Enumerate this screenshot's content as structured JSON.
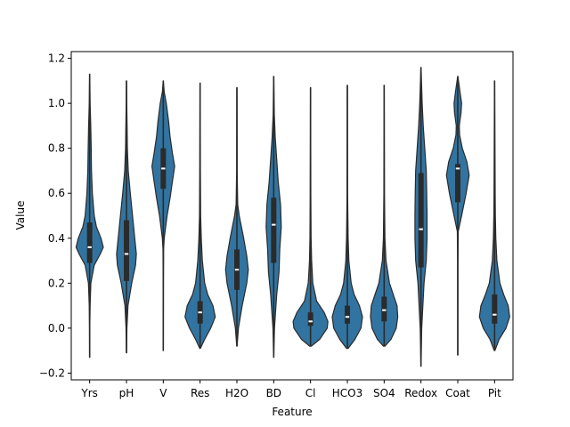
{
  "chart_data": {
    "type": "violin",
    "xlabel": "Feature",
    "ylabel": "Value",
    "ylim": [
      -0.23,
      1.23
    ],
    "yticks": [
      -0.2,
      0.0,
      0.2,
      0.4,
      0.6,
      0.8,
      1.0,
      1.2
    ],
    "ytick_labels": [
      "−0.2",
      "0.0",
      "0.2",
      "0.4",
      "0.6",
      "0.8",
      "1.0",
      "1.2"
    ],
    "grid": false,
    "colors": {
      "violin_fill": "#3274a1",
      "violin_edge": "#2a2a2a",
      "box": "#2b2b2b",
      "median": "#ffffff"
    },
    "categories": [
      "Yrs",
      "pH",
      "V",
      "Res",
      "H2O",
      "BD",
      "Cl",
      "HCO3",
      "SO4",
      "Redox",
      "Coat",
      "Pit"
    ],
    "violins": [
      {
        "name": "Yrs",
        "min": -0.13,
        "max": 1.13,
        "q1": 0.29,
        "median": 0.36,
        "q3": 0.47,
        "profile": [
          [
            -0.13,
            0.005
          ],
          [
            0.0,
            0.01
          ],
          [
            0.1,
            0.03
          ],
          [
            0.2,
            0.08
          ],
          [
            0.28,
            0.3
          ],
          [
            0.33,
            0.7
          ],
          [
            0.36,
            0.9
          ],
          [
            0.4,
            0.75
          ],
          [
            0.45,
            0.45
          ],
          [
            0.5,
            0.3
          ],
          [
            0.6,
            0.18
          ],
          [
            0.7,
            0.12
          ],
          [
            0.8,
            0.1
          ],
          [
            0.9,
            0.07
          ],
          [
            1.0,
            0.03
          ],
          [
            1.13,
            0.005
          ]
        ]
      },
      {
        "name": "pH",
        "min": -0.11,
        "max": 1.1,
        "q1": 0.21,
        "median": 0.33,
        "q3": 0.48,
        "profile": [
          [
            -0.11,
            0.005
          ],
          [
            0.0,
            0.03
          ],
          [
            0.1,
            0.1
          ],
          [
            0.2,
            0.35
          ],
          [
            0.28,
            0.6
          ],
          [
            0.33,
            0.65
          ],
          [
            0.4,
            0.55
          ],
          [
            0.5,
            0.4
          ],
          [
            0.6,
            0.25
          ],
          [
            0.7,
            0.12
          ],
          [
            0.8,
            0.06
          ],
          [
            0.9,
            0.04
          ],
          [
            1.0,
            0.02
          ],
          [
            1.1,
            0.005
          ]
        ]
      },
      {
        "name": "V",
        "min": -0.1,
        "max": 1.1,
        "q1": 0.62,
        "median": 0.71,
        "q3": 0.8,
        "profile": [
          [
            -0.1,
            0.005
          ],
          [
            0.2,
            0.01
          ],
          [
            0.35,
            0.02
          ],
          [
            0.4,
            0.06
          ],
          [
            0.5,
            0.25
          ],
          [
            0.58,
            0.45
          ],
          [
            0.65,
            0.6
          ],
          [
            0.72,
            0.75
          ],
          [
            0.78,
            0.6
          ],
          [
            0.85,
            0.45
          ],
          [
            0.92,
            0.35
          ],
          [
            1.0,
            0.2
          ],
          [
            1.05,
            0.06
          ],
          [
            1.1,
            0.005
          ]
        ]
      },
      {
        "name": "Res",
        "min": -0.09,
        "max": 1.09,
        "q1": 0.02,
        "median": 0.07,
        "q3": 0.12,
        "profile": [
          [
            -0.09,
            0.02
          ],
          [
            -0.05,
            0.3
          ],
          [
            0.0,
            0.7
          ],
          [
            0.05,
            1.0
          ],
          [
            0.1,
            0.85
          ],
          [
            0.15,
            0.5
          ],
          [
            0.2,
            0.3
          ],
          [
            0.3,
            0.15
          ],
          [
            0.4,
            0.08
          ],
          [
            0.5,
            0.04
          ],
          [
            0.7,
            0.02
          ],
          [
            1.09,
            0.005
          ]
        ]
      },
      {
        "name": "H2O",
        "min": -0.08,
        "max": 1.07,
        "q1": 0.17,
        "median": 0.26,
        "q3": 0.35,
        "profile": [
          [
            -0.08,
            0.01
          ],
          [
            0.0,
            0.1
          ],
          [
            0.1,
            0.35
          ],
          [
            0.2,
            0.65
          ],
          [
            0.26,
            0.75
          ],
          [
            0.32,
            0.65
          ],
          [
            0.4,
            0.45
          ],
          [
            0.5,
            0.15
          ],
          [
            0.55,
            0.05
          ],
          [
            0.7,
            0.02
          ],
          [
            1.07,
            0.005
          ]
        ]
      },
      {
        "name": "BD",
        "min": -0.13,
        "max": 1.12,
        "q1": 0.29,
        "median": 0.46,
        "q3": 0.58,
        "profile": [
          [
            -0.13,
            0.005
          ],
          [
            0.0,
            0.05
          ],
          [
            0.15,
            0.2
          ],
          [
            0.25,
            0.35
          ],
          [
            0.35,
            0.4
          ],
          [
            0.45,
            0.5
          ],
          [
            0.55,
            0.45
          ],
          [
            0.65,
            0.3
          ],
          [
            0.75,
            0.2
          ],
          [
            0.85,
            0.1
          ],
          [
            0.95,
            0.04
          ],
          [
            1.12,
            0.005
          ]
        ]
      },
      {
        "name": "Cl",
        "min": -0.08,
        "max": 1.07,
        "q1": 0.01,
        "median": 0.03,
        "q3": 0.07,
        "profile": [
          [
            -0.08,
            0.05
          ],
          [
            -0.05,
            0.6
          ],
          [
            0.0,
            1.1
          ],
          [
            0.03,
            1.15
          ],
          [
            0.07,
            0.9
          ],
          [
            0.12,
            0.4
          ],
          [
            0.2,
            0.15
          ],
          [
            0.3,
            0.07
          ],
          [
            0.4,
            0.04
          ],
          [
            0.6,
            0.02
          ],
          [
            1.07,
            0.005
          ]
        ]
      },
      {
        "name": "HCO3",
        "min": -0.09,
        "max": 1.08,
        "q1": 0.02,
        "median": 0.05,
        "q3": 0.1,
        "profile": [
          [
            -0.09,
            0.05
          ],
          [
            -0.05,
            0.5
          ],
          [
            0.0,
            0.9
          ],
          [
            0.05,
            1.0
          ],
          [
            0.1,
            0.8
          ],
          [
            0.15,
            0.45
          ],
          [
            0.2,
            0.25
          ],
          [
            0.3,
            0.1
          ],
          [
            0.4,
            0.05
          ],
          [
            0.6,
            0.02
          ],
          [
            1.08,
            0.005
          ]
        ]
      },
      {
        "name": "SO4",
        "min": -0.08,
        "max": 1.08,
        "q1": 0.03,
        "median": 0.08,
        "q3": 0.14,
        "profile": [
          [
            -0.08,
            0.05
          ],
          [
            -0.05,
            0.45
          ],
          [
            0.0,
            0.8
          ],
          [
            0.05,
            0.9
          ],
          [
            0.1,
            0.85
          ],
          [
            0.15,
            0.6
          ],
          [
            0.2,
            0.35
          ],
          [
            0.3,
            0.12
          ],
          [
            0.4,
            0.05
          ],
          [
            0.6,
            0.02
          ],
          [
            1.08,
            0.005
          ]
        ]
      },
      {
        "name": "Redox",
        "min": -0.17,
        "max": 1.16,
        "q1": 0.27,
        "median": 0.44,
        "q3": 0.69,
        "profile": [
          [
            -0.17,
            0.005
          ],
          [
            0.0,
            0.05
          ],
          [
            0.2,
            0.2
          ],
          [
            0.3,
            0.35
          ],
          [
            0.4,
            0.4
          ],
          [
            0.5,
            0.4
          ],
          [
            0.6,
            0.38
          ],
          [
            0.7,
            0.35
          ],
          [
            0.8,
            0.25
          ],
          [
            0.9,
            0.15
          ],
          [
            1.0,
            0.08
          ],
          [
            1.16,
            0.005
          ]
        ]
      },
      {
        "name": "Coat",
        "min": -0.12,
        "max": 1.12,
        "q1": 0.56,
        "median": 0.71,
        "q3": 0.73,
        "profile": [
          [
            -0.12,
            0.005
          ],
          [
            0.3,
            0.01
          ],
          [
            0.43,
            0.03
          ],
          [
            0.5,
            0.25
          ],
          [
            0.6,
            0.55
          ],
          [
            0.68,
            0.75
          ],
          [
            0.74,
            0.6
          ],
          [
            0.8,
            0.3
          ],
          [
            0.86,
            0.12
          ],
          [
            0.9,
            0.1
          ],
          [
            0.96,
            0.22
          ],
          [
            1.0,
            0.25
          ],
          [
            1.05,
            0.15
          ],
          [
            1.12,
            0.005
          ]
        ]
      },
      {
        "name": "Pit",
        "min": -0.1,
        "max": 1.1,
        "q1": 0.02,
        "median": 0.06,
        "q3": 0.15,
        "profile": [
          [
            -0.1,
            0.02
          ],
          [
            -0.05,
            0.3
          ],
          [
            0.0,
            0.75
          ],
          [
            0.05,
            1.0
          ],
          [
            0.1,
            0.9
          ],
          [
            0.15,
            0.6
          ],
          [
            0.2,
            0.35
          ],
          [
            0.3,
            0.15
          ],
          [
            0.4,
            0.08
          ],
          [
            0.5,
            0.05
          ],
          [
            0.6,
            0.04
          ],
          [
            1.1,
            0.005
          ]
        ]
      }
    ]
  }
}
